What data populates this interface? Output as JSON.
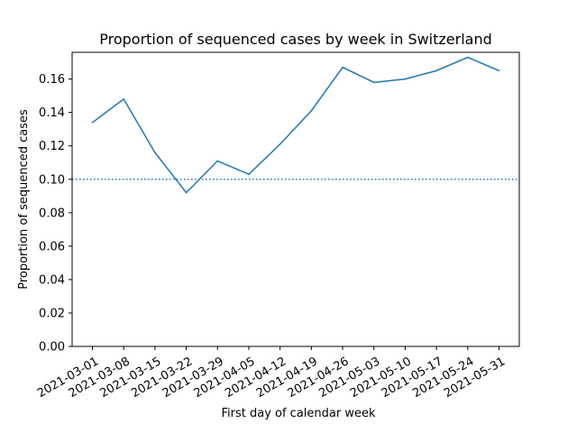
{
  "chart_data": {
    "type": "line",
    "title": "Proportion of sequenced cases by week in Switzerland",
    "xlabel": "First day of calendar week",
    "ylabel": "Proportion of sequenced cases",
    "ylim": [
      0,
      0.176
    ],
    "yticks": [
      0.0,
      0.02,
      0.04,
      0.06,
      0.08,
      0.1,
      0.12,
      0.14,
      0.16
    ],
    "ytick_labels": [
      "0.00",
      "0.02",
      "0.04",
      "0.06",
      "0.08",
      "0.10",
      "0.12",
      "0.14",
      "0.16"
    ],
    "categories": [
      "2021-03-01",
      "2021-03-08",
      "2021-03-15",
      "2021-03-22",
      "2021-03-29",
      "2021-04-05",
      "2021-04-12",
      "2021-04-19",
      "2021-04-26",
      "2021-05-03",
      "2021-05-10",
      "2021-05-17",
      "2021-05-24",
      "2021-05-31"
    ],
    "series": [
      {
        "color": "#1f77b4",
        "values": [
          0.134,
          0.148,
          0.116,
          0.092,
          0.111,
          0.103,
          0.121,
          0.141,
          0.167,
          0.158,
          0.16,
          0.165,
          0.173,
          0.165
        ]
      }
    ],
    "reference_line": {
      "y": 0.1,
      "style": "dotted",
      "color": "#1f77b4"
    },
    "grid": false,
    "legend": "none"
  }
}
